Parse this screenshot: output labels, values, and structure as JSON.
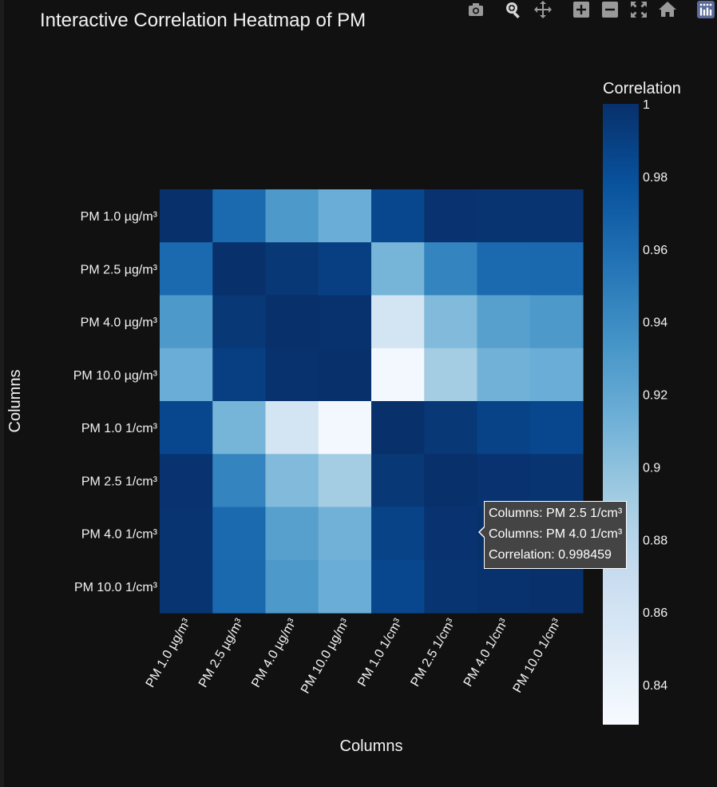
{
  "chart_data": {
    "type": "heatmap",
    "title": "Interactive Correlation Heatmap of PM",
    "xlabel": "Columns",
    "ylabel": "Columns",
    "x_categories": [
      "PM 1.0 µg/m³",
      "PM 2.5 µg/m³",
      "PM 4.0 µg/m³",
      "PM 10.0 µg/m³",
      "PM 1.0 1/cm³",
      "PM 2.5 1/cm³",
      "PM 4.0 1/cm³",
      "PM 10.0 1/cm³"
    ],
    "y_categories": [
      "PM 1.0 µg/m³",
      "PM 2.5 µg/m³",
      "PM 4.0 µg/m³",
      "PM 10.0 µg/m³",
      "PM 1.0 1/cm³",
      "PM 2.5 1/cm³",
      "PM 4.0 1/cm³",
      "PM 10.0 1/cm³"
    ],
    "z": [
      [
        1.0,
        0.962,
        0.93,
        0.915,
        0.985,
        0.998,
        0.997,
        0.997
      ],
      [
        0.962,
        1.0,
        0.995,
        0.99,
        0.91,
        0.945,
        0.962,
        0.963
      ],
      [
        0.93,
        0.995,
        1.0,
        0.999,
        0.86,
        0.905,
        0.925,
        0.93
      ],
      [
        0.915,
        0.99,
        0.999,
        1.0,
        0.833,
        0.89,
        0.912,
        0.915
      ],
      [
        0.985,
        0.91,
        0.86,
        0.833,
        1.0,
        0.995,
        0.988,
        0.985
      ],
      [
        0.998,
        0.945,
        0.905,
        0.89,
        0.995,
        1.0,
        0.998,
        0.997
      ],
      [
        0.997,
        0.962,
        0.925,
        0.912,
        0.988,
        0.998,
        1.0,
        0.999
      ],
      [
        0.997,
        0.963,
        0.93,
        0.915,
        0.985,
        0.997,
        0.999,
        1.0
      ]
    ],
    "zmin": 0.829,
    "zmax": 1.0,
    "colorscale": "Blues",
    "colorbar": {
      "title": "Correlation",
      "ticks": [
        1,
        0.98,
        0.96,
        0.94,
        0.92,
        0.9,
        0.88,
        0.86,
        0.84
      ],
      "tick_labels": [
        "1",
        "0.98",
        "0.96",
        "0.94",
        "0.92",
        "0.9",
        "0.88",
        "0.86",
        "0.84"
      ]
    },
    "hover": {
      "line1": "Columns: PM 2.5 1/cm³",
      "line2": "Columns: PM 4.0 1/cm³",
      "line3": "Correlation: 0.998459"
    }
  },
  "modebar": {
    "icons": [
      "camera-icon",
      "zoom-icon",
      "pan-icon",
      "zoom-in-icon",
      "zoom-out-icon",
      "autoscale-icon",
      "reset-axes-icon",
      "plotly-logo-icon"
    ]
  },
  "colors": {
    "background": "#111111",
    "text": "#f2f2f2",
    "modebar_icon": "#9a9a9a"
  }
}
